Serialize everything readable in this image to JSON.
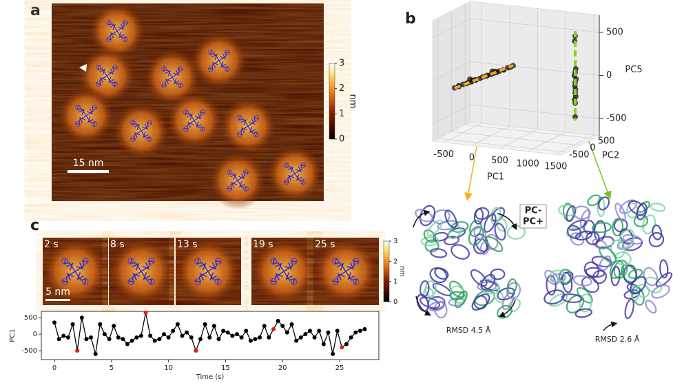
{
  "panel_labels": [
    "a",
    "b",
    "c"
  ],
  "panel_a": {
    "scale_bar": "15 nm",
    "colorbar": {
      "label": "nm",
      "lim": [
        0,
        3
      ],
      "ticks": [
        0,
        1,
        2,
        3
      ]
    }
  },
  "panel_c": {
    "frames": [
      "2 s",
      "8 s",
      "13 s",
      "19 s",
      "25 s"
    ],
    "scale_bar": "5 nm",
    "colorbar": {
      "label": "nm",
      "lim": [
        0,
        3
      ],
      "ticks": [
        0,
        1,
        2,
        3
      ]
    }
  },
  "structures": {
    "legend": [
      {
        "label": "PC-",
        "color": "#6a3d9a"
      },
      {
        "label": "PC+",
        "color": "#2ca25f"
      }
    ],
    "rmsd": [
      "RMSD 4.5 Å",
      "RMSD 2.6 Å"
    ]
  },
  "chart_data": [
    {
      "type": "scatter3d",
      "xlabel": "PC1",
      "ylabel": "PC2",
      "zlabel": "PC5",
      "color": "#111111",
      "x": [
        -500,
        -450,
        -400,
        -350,
        -300,
        -250,
        -200,
        -150,
        -100,
        -50,
        0,
        50,
        100,
        150,
        200,
        250,
        300,
        350,
        400,
        450,
        500,
        545,
        -300,
        -100,
        100,
        300,
        1300,
        1290,
        1310,
        1300,
        1285,
        1315,
        1300,
        1295,
        1305,
        1300,
        1310,
        1290,
        1300,
        1300
      ],
      "y": [
        -300,
        -250,
        -350,
        -300,
        -280,
        -320,
        -300,
        -260,
        -340,
        -300,
        -300,
        -270,
        -330,
        -300,
        -310,
        -290,
        -300,
        -250,
        -350,
        -300,
        -300,
        -300,
        -150,
        -450,
        -150,
        -450,
        430,
        430,
        430,
        430,
        430,
        430,
        430,
        430,
        430,
        430,
        430,
        430,
        430,
        430
      ],
      "z": [
        -130,
        -110,
        -100,
        -80,
        -70,
        -50,
        -40,
        -20,
        -5,
        10,
        30,
        40,
        60,
        70,
        90,
        100,
        120,
        130,
        150,
        170,
        180,
        200,
        -40,
        10,
        80,
        140,
        480,
        420,
        100,
        60,
        20,
        -20,
        -60,
        -100,
        -140,
        -180,
        -220,
        -260,
        -300,
        -460
      ],
      "xlim": [
        -700,
        1600
      ],
      "ylim": [
        -700,
        700
      ],
      "zlim": [
        -700,
        700
      ],
      "xticks": [
        -500,
        0,
        500,
        1000,
        1500
      ],
      "yticks": [
        -500,
        0,
        500
      ],
      "zticks": [
        -500,
        0,
        500
      ]
    },
    {
      "type": "line",
      "xlabel": "Time (s)",
      "ylabel": "PC1",
      "color": "#000000",
      "x": [
        0,
        0.4,
        0.8,
        1.2,
        1.6,
        2.0,
        2.4,
        2.8,
        3.2,
        3.6,
        4.0,
        4.4,
        4.8,
        5.2,
        5.6,
        6.0,
        6.4,
        6.8,
        7.2,
        7.6,
        8.0,
        8.4,
        8.8,
        9.2,
        9.6,
        10.0,
        10.4,
        10.8,
        11.2,
        11.6,
        12.0,
        12.4,
        12.8,
        13.2,
        13.6,
        14.0,
        14.4,
        14.8,
        15.2,
        15.6,
        16.0,
        16.4,
        16.8,
        17.2,
        17.6,
        18.0,
        18.4,
        18.8,
        19.2,
        19.6,
        20.0,
        20.4,
        20.8,
        21.2,
        21.6,
        22.0,
        22.4,
        22.8,
        23.2,
        23.6,
        24.0,
        24.4,
        24.8,
        25.2,
        25.6,
        26.0,
        26.4,
        26.8,
        27.2
      ],
      "values": [
        350,
        -150,
        -50,
        -100,
        300,
        -500,
        500,
        -150,
        -100,
        -600,
        300,
        0,
        -150,
        250,
        -100,
        -150,
        -300,
        -200,
        -100,
        -50,
        650,
        -50,
        -200,
        -150,
        0,
        -100,
        100,
        300,
        -50,
        50,
        -100,
        -500,
        -150,
        300,
        -100,
        250,
        -150,
        100,
        50,
        -50,
        0,
        -100,
        100,
        -200,
        -150,
        -100,
        250,
        -100,
        150,
        400,
        250,
        50,
        300,
        -200,
        -100,
        0,
        100,
        -100,
        100,
        -300,
        50,
        -600,
        100,
        -400,
        -300,
        -100,
        50,
        100,
        150
      ],
      "highlight": {
        "indices": [
          5,
          20,
          31,
          48,
          63
        ],
        "color": "#e8191a"
      },
      "xlim": [
        -1.15,
        28.44
      ],
      "ylim": [
        -770,
        690
      ],
      "xticks": [
        0,
        5,
        10,
        15,
        20,
        25
      ],
      "yticks": [
        -500,
        0,
        500
      ]
    }
  ]
}
